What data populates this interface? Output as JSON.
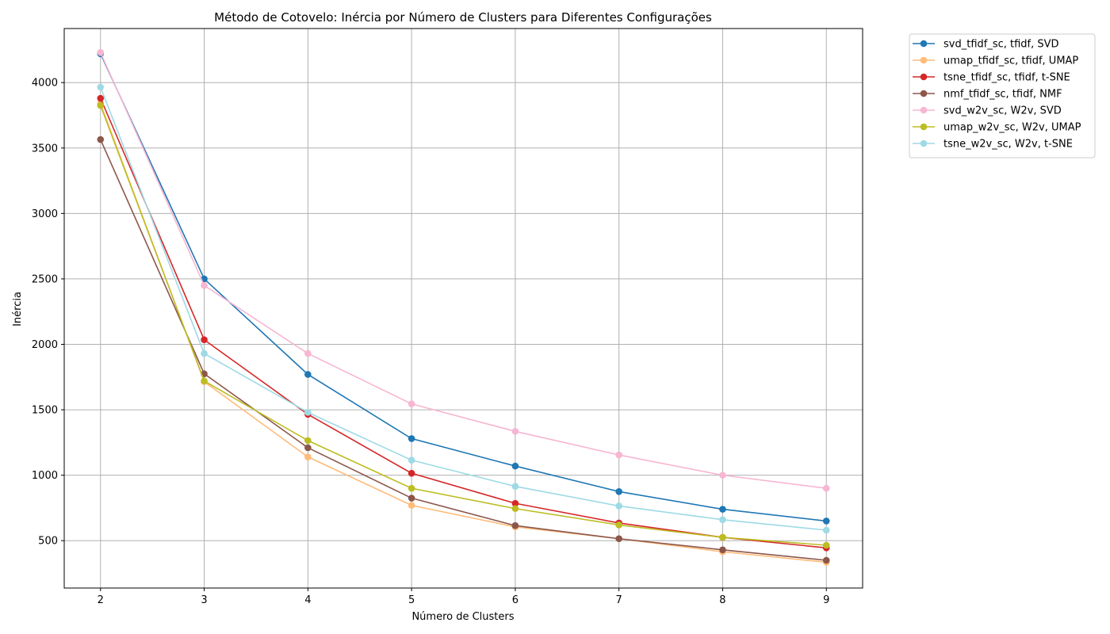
{
  "chart_data": {
    "type": "line",
    "title": "Método de Cotovelo: Inércia por Número de Clusters para Diferentes Configurações",
    "xlabel": "Número de Clusters",
    "ylabel": "Inércia",
    "x": [
      2,
      3,
      4,
      5,
      6,
      7,
      8,
      9
    ],
    "xlim": [
      1.65,
      9.35
    ],
    "ylim": [
      138,
      4413
    ],
    "xticks": [
      2,
      3,
      4,
      5,
      6,
      7,
      8,
      9
    ],
    "yticks": [
      500,
      1000,
      1500,
      2000,
      2500,
      3000,
      3500,
      4000
    ],
    "grid": true,
    "legend_position": "outside-right-top",
    "series": [
      {
        "name": "svd_tfidf_sc, tfidf, SVD",
        "color": "#1f77b4",
        "values": [
          4220,
          2500,
          1770,
          1280,
          1070,
          875,
          740,
          650
        ]
      },
      {
        "name": "umap_tfidf_sc, tfidf, UMAP",
        "color": "#ffbb78",
        "values": [
          3840,
          1715,
          1140,
          770,
          605,
          515,
          415,
          335
        ]
      },
      {
        "name": "tsne_tfidf_sc, tfidf, t-SNE",
        "color": "#d62728",
        "values": [
          3880,
          2035,
          1465,
          1015,
          785,
          635,
          525,
          445
        ]
      },
      {
        "name": "nmf_tfidf_sc, tfidf, NMF",
        "color": "#8c564b",
        "values": [
          3565,
          1775,
          1210,
          825,
          615,
          515,
          430,
          350
        ]
      },
      {
        "name": "svd_w2v_sc, W2v, SVD",
        "color": "#f7b6d2",
        "values": [
          4230,
          2450,
          1930,
          1545,
          1335,
          1155,
          1000,
          900
        ]
      },
      {
        "name": "umap_w2v_sc, W2v, UMAP",
        "color": "#bcbd22",
        "values": [
          3825,
          1720,
          1265,
          900,
          745,
          620,
          525,
          465
        ]
      },
      {
        "name": "tsne_w2v_sc, W2v, t-SNE",
        "color": "#9edae5",
        "values": [
          3965,
          1930,
          1480,
          1115,
          915,
          765,
          660,
          580
        ]
      }
    ]
  }
}
